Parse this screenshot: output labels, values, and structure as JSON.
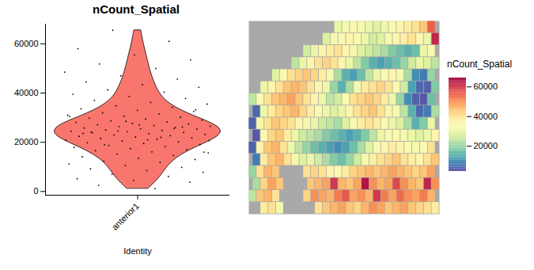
{
  "chart_data": [
    {
      "type": "violin",
      "title": "nCount_Spatial",
      "xlabel": "Identity",
      "categories": [
        "anterior1"
      ],
      "color": "#F8766D",
      "ylim": [
        -1500,
        68000
      ],
      "yticks": [
        0,
        20000,
        40000,
        60000
      ],
      "values": [
        [
          1200,
          2500,
          3800,
          4500,
          5200,
          6100,
          7000,
          7800,
          8500,
          9200,
          9800,
          10500,
          11200,
          11800,
          12400,
          13000,
          13500,
          14100,
          14600,
          15200,
          15700,
          16100,
          16600,
          17000,
          17400,
          17900,
          18300,
          18700,
          19100,
          19500,
          19800,
          20200,
          20500,
          20900,
          21200,
          21500,
          21800,
          22100,
          22400,
          22700,
          23000,
          23200,
          23500,
          23800,
          24000,
          24300,
          24500,
          24800,
          25000,
          25300,
          25500,
          25800,
          26000,
          26300,
          26500,
          26800,
          27100,
          27400,
          27700,
          28000,
          28300,
          28700,
          29000,
          29400,
          29800,
          30200,
          30600,
          31000,
          31500,
          32000,
          32500,
          33000,
          33600,
          34200,
          34800,
          35500,
          36200,
          37000,
          37800,
          38600,
          39500,
          40400,
          41300,
          42300,
          43400,
          44500,
          45700,
          47000,
          48500,
          50000,
          51800,
          53500,
          55500,
          58000,
          61000,
          65500,
          16000,
          21000,
          24200,
          26200,
          28500,
          30500,
          22000,
          19000,
          33200,
          27000,
          23600,
          25600,
          24600,
          20700
        ]
      ]
    },
    {
      "type": "heatmap",
      "legend_title": "nCount_Spatial",
      "legend": "right",
      "tick_labels": false,
      "color_range": [
        3000,
        66000
      ],
      "color_ticks": [
        20000,
        40000,
        60000
      ],
      "cells": [
        [
          null,
          null,
          null,
          null,
          null,
          null,
          null,
          null,
          null,
          null,
          null,
          30000,
          32000,
          34000,
          33000,
          30000,
          28000,
          30000,
          33000,
          36000,
          38000,
          40000,
          44000,
          55000
        ],
        [
          null,
          null,
          null,
          null,
          null,
          null,
          null,
          null,
          null,
          28000,
          32000,
          35000,
          36000,
          34000,
          30000,
          26000,
          28000,
          32000,
          35000,
          38000,
          40000,
          36000,
          30000,
          62000
        ],
        [
          null,
          null,
          null,
          null,
          null,
          null,
          null,
          26000,
          30000,
          36000,
          38000,
          40000,
          36000,
          32000,
          28000,
          26000,
          24000,
          22000,
          18000,
          16000,
          14000,
          16000,
          30000,
          34000
        ],
        [
          null,
          null,
          null,
          null,
          null,
          24000,
          30000,
          36000,
          40000,
          42000,
          40000,
          36000,
          30000,
          24000,
          18000,
          14000,
          12000,
          14000,
          16000,
          20000,
          26000,
          30000,
          28000,
          24000
        ],
        [
          null,
          null,
          null,
          28000,
          34000,
          40000,
          42000,
          44000,
          42000,
          38000,
          32000,
          22000,
          14000,
          12000,
          16000,
          24000,
          30000,
          34000,
          36000,
          32000,
          22000,
          10000,
          8000,
          20000
        ],
        [
          null,
          30000,
          36000,
          40000,
          44000,
          46000,
          44000,
          40000,
          36000,
          30000,
          20000,
          14000,
          22000,
          32000,
          38000,
          40000,
          42000,
          40000,
          34000,
          26000,
          12000,
          6000,
          5000,
          18000
        ],
        [
          24000,
          34000,
          40000,
          44000,
          46000,
          48000,
          44000,
          40000,
          36000,
          30000,
          24000,
          26000,
          34000,
          40000,
          42000,
          44000,
          42000,
          38000,
          30000,
          20000,
          10000,
          5000,
          4000,
          16000
        ],
        [
          6000,
          30000,
          38000,
          42000,
          44000,
          46000,
          42000,
          38000,
          34000,
          30000,
          28000,
          30000,
          36000,
          40000,
          42000,
          44000,
          40000,
          36000,
          32000,
          24000,
          14000,
          6000,
          8000,
          22000
        ],
        [
          5000,
          32000,
          40000,
          44000,
          42000,
          40000,
          36000,
          32000,
          30000,
          26000,
          24000,
          22000,
          28000,
          34000,
          38000,
          40000,
          38000,
          34000,
          30000,
          28000,
          22000,
          14000,
          18000,
          30000
        ],
        [
          4000,
          34000,
          42000,
          44000,
          38000,
          30000,
          26000,
          24000,
          22000,
          18000,
          16000,
          14000,
          12000,
          14000,
          18000,
          24000,
          30000,
          32000,
          34000,
          32000,
          30000,
          28000,
          30000,
          36000
        ],
        [
          5000,
          36000,
          44000,
          46000,
          40000,
          30000,
          24000,
          20000,
          16000,
          14000,
          12000,
          10000,
          12000,
          16000,
          22000,
          28000,
          34000,
          36000,
          38000,
          36000,
          34000,
          32000,
          34000,
          40000
        ],
        [
          8000,
          38000,
          44000,
          46000,
          40000,
          32000,
          28000,
          30000,
          26000,
          22000,
          18000,
          16000,
          20000,
          26000,
          32000,
          38000,
          40000,
          42000,
          44000,
          40000,
          38000,
          36000,
          40000,
          44000
        ],
        [
          20000,
          40000,
          46000,
          44000,
          null,
          null,
          null,
          40000,
          42000,
          40000,
          36000,
          34000,
          38000,
          42000,
          44000,
          46000,
          44000,
          46000,
          48000,
          46000,
          44000,
          42000,
          44000,
          48000
        ],
        [
          22000,
          42000,
          48000,
          44000,
          null,
          null,
          null,
          44000,
          46000,
          48000,
          60000,
          46000,
          44000,
          48000,
          64000,
          50000,
          46000,
          48000,
          58000,
          50000,
          46000,
          44000,
          62000,
          50000
        ],
        [
          24000,
          44000,
          46000,
          40000,
          null,
          null,
          null,
          42000,
          50000,
          48000,
          46000,
          52000,
          56000,
          48000,
          50000,
          46000,
          60000,
          52000,
          48000,
          54000,
          50000,
          48000,
          52000,
          46000
        ],
        [
          null,
          38000,
          40000,
          32000,
          null,
          null,
          null,
          null,
          40000,
          44000,
          46000,
          48000,
          44000,
          42000,
          46000,
          50000,
          48000,
          44000,
          46000,
          48000,
          44000,
          42000,
          40000,
          38000
        ]
      ]
    }
  ]
}
